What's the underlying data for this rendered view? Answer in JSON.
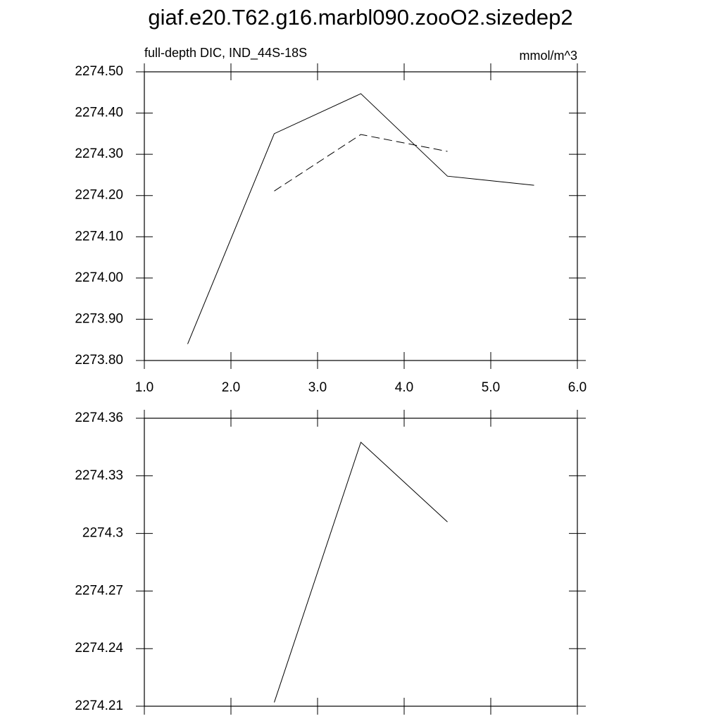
{
  "chart_data": [
    {
      "type": "line",
      "title": "giaf.e20.T62.g16.marbl090.zooO2.sizedep2",
      "subtitle_left": "full-depth DIC, IND_44S-18S",
      "subtitle_right": "mmol/m^3",
      "x": [
        1.5,
        2.5,
        3.5,
        4.5,
        5.5
      ],
      "series": [
        {
          "color": "#000000",
          "line_style": "solid",
          "values": [
            2273.84,
            2274.35,
            2274.447,
            2274.247,
            2274.225
          ]
        },
        {
          "color": "#000000",
          "line_style": "dashed",
          "values": [
            null,
            2274.211,
            2274.348,
            2274.307,
            null
          ]
        }
      ],
      "xlim": [
        1,
        6
      ],
      "xticks": [
        {
          "value": 1,
          "label": "1.0"
        },
        {
          "value": 2,
          "label": "2.0"
        },
        {
          "value": 3,
          "label": "3.0"
        },
        {
          "value": 4,
          "label": "4.0"
        },
        {
          "value": 5,
          "label": "5.0"
        },
        {
          "value": 6,
          "label": "6.0"
        }
      ],
      "ylim": [
        2273.8,
        2274.5
      ],
      "yticks": [
        {
          "value": 2273.8,
          "label": "2273.80"
        },
        {
          "value": 2273.9,
          "label": "2273.90"
        },
        {
          "value": 2274.0,
          "label": "2274.00"
        },
        {
          "value": 2274.1,
          "label": "2274.10"
        },
        {
          "value": 2274.2,
          "label": "2274.20"
        },
        {
          "value": 2274.3,
          "label": "2274.30"
        },
        {
          "value": 2274.4,
          "label": "2274.40"
        },
        {
          "value": 2274.5,
          "label": "2274.50"
        }
      ]
    },
    {
      "type": "line",
      "x": [
        2.5,
        3.5,
        4.5
      ],
      "series": [
        {
          "color": "#000000",
          "line_style": "solid",
          "values": [
            2274.212,
            2274.3475,
            2274.306
          ]
        }
      ],
      "xlim": [
        1,
        6
      ],
      "xticks": [
        1,
        2,
        3,
        4,
        5,
        6
      ],
      "ylim": [
        2274.21,
        2274.36
      ],
      "yticks": [
        2274.21,
        2274.24,
        2274.27,
        2274.3,
        2274.33,
        2274.36
      ]
    }
  ]
}
